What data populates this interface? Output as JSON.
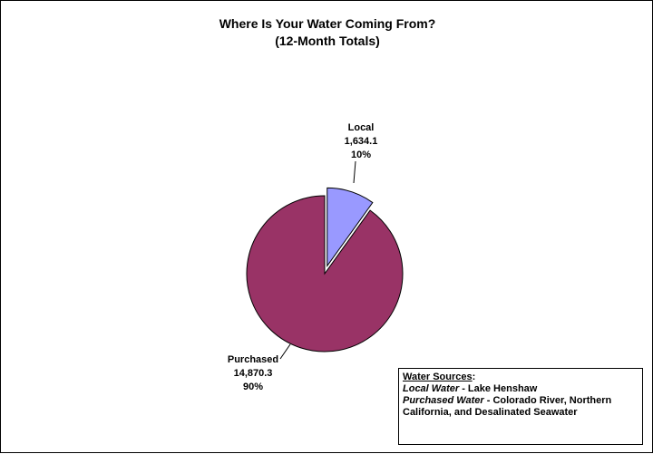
{
  "chart_data": {
    "type": "pie",
    "title": "Where Is Your Water Coming From?",
    "subtitle": "(12-Month Totals)",
    "slices": [
      {
        "name": "Local",
        "value": 1634.1,
        "value_label": "1,634.1",
        "percent_label": "10%",
        "color": "#9999ff",
        "exploded": true
      },
      {
        "name": "Purchased",
        "value": 14870.3,
        "value_label": "14,870.3",
        "percent_label": "90%",
        "color": "#993366",
        "exploded": false
      }
    ]
  },
  "legend_box": {
    "heading": "Water Sources",
    "local_term": "Local Water",
    "local_desc": " - Lake Henshaw",
    "purchased_term": "Purchased Water",
    "purchased_desc": " - Colorado River, Northern California, and Desalinated Seawater"
  }
}
